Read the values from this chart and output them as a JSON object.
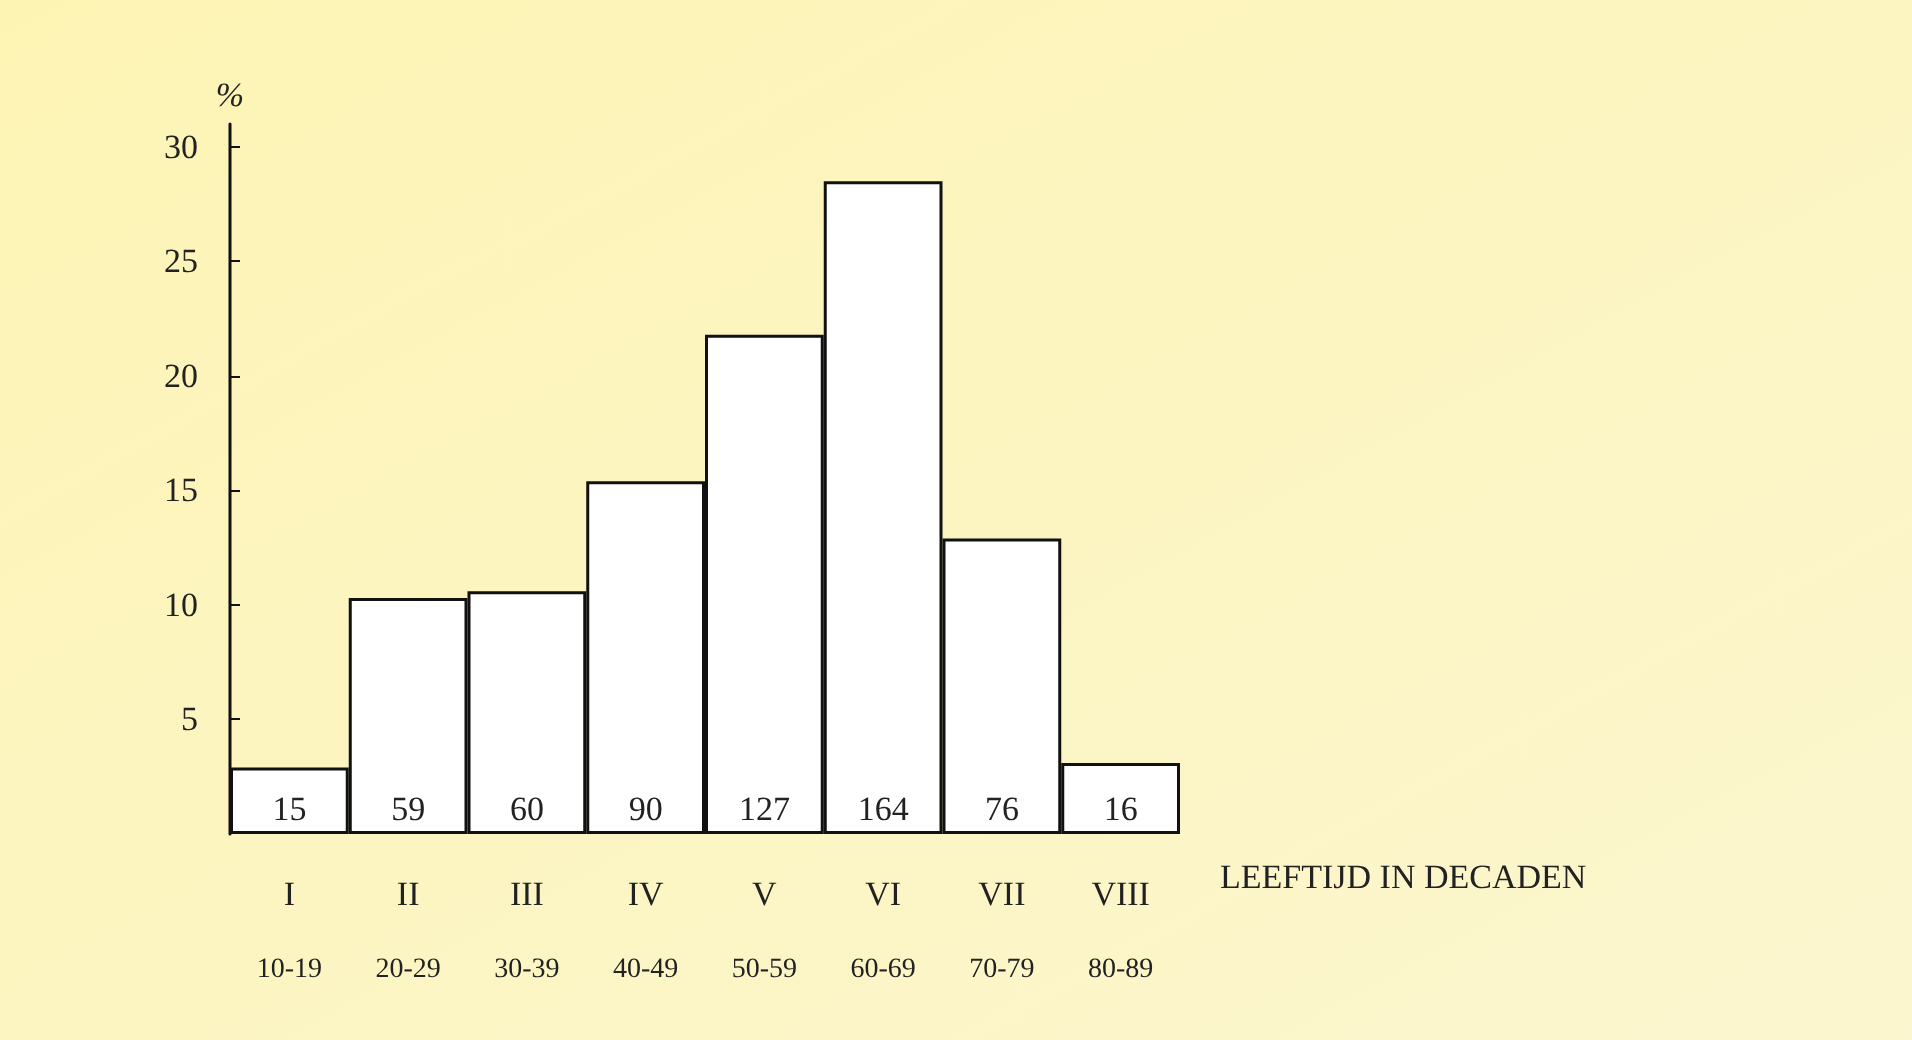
{
  "chart_data": {
    "type": "bar",
    "ylabel": "%",
    "xlabel": "LEEFTIJD IN DECADEN",
    "categories": [
      "I\n10-19",
      "II\n20-29",
      "III\n30-39",
      "IV\n40-49",
      "V\n50-59",
      "VI\n60-69",
      "VII\n70-79",
      "VIII\n80-89"
    ],
    "values": [
      2.9,
      10.3,
      10.6,
      15.4,
      21.8,
      28.5,
      12.9,
      3.1
    ],
    "annotations": [
      "15",
      "59",
      "60",
      "90",
      "127",
      "164",
      "76",
      "16"
    ],
    "color": "#ffffff",
    "ylim": [
      0,
      31
    ],
    "yticks": [
      5,
      10,
      15,
      20,
      25,
      30
    ],
    "grid": false
  }
}
